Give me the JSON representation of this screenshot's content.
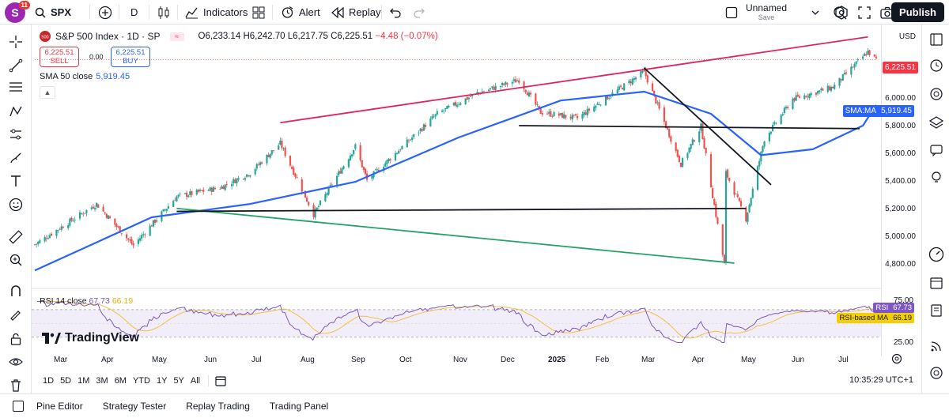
{
  "topbar": {
    "avatar_letter": "S",
    "notification_count": "11",
    "symbol": "SPX",
    "interval": "D",
    "indicators_label": "Indicators",
    "alert_label": "Alert",
    "replay_label": "Replay",
    "layout_name": "Unnamed",
    "layout_status": "Save",
    "publish_label": "Publish"
  },
  "legend": {
    "title": "S&P 500 Index · 1D · SP",
    "open": "O6,233.14",
    "high": "H6,242.70",
    "low": "L6,217.75",
    "close": "C6,225.51",
    "change": "−4.48 (−0.07%)",
    "sell_price": "6,225.51",
    "sell_label": "SELL",
    "spread": "0.00",
    "buy_price": "6,225.51",
    "buy_label": "BUY",
    "sma_label": "SMA 50 close",
    "sma_value": "5,919.45",
    "rsi_label": "RSI 14 close",
    "rsi_value": "67.73",
    "rsi_ma_value": "66.19",
    "brand": "TradingView"
  },
  "price_axis": {
    "currency": "USD",
    "ticks": [
      "6,000.00",
      "5,800.00",
      "5,600.00",
      "5,400.00",
      "5,200.00",
      "5,000.00",
      "4,800.00"
    ],
    "last_price_tag": "6,225.51",
    "sma_tag_label": "SMA:MA",
    "sma_tag_value": "5,919.45"
  },
  "rsi_axis": {
    "ticks": [
      "75.00",
      "25.00"
    ],
    "rsi_tag_label": "RSI",
    "rsi_tag_value": "67.73",
    "rsi_ma_tag_label": "RSI-based MA",
    "rsi_ma_tag_value": "66.19"
  },
  "time_axis": {
    "labels": [
      "Mar",
      "Apr",
      "May",
      "Jun",
      "Jul",
      "Aug",
      "Sep",
      "Oct",
      "Nov",
      "Dec",
      "2025",
      "Feb",
      "Mar",
      "Apr",
      "May",
      "Jun",
      "Jul"
    ]
  },
  "ranges": [
    "1D",
    "5D",
    "1M",
    "3M",
    "6M",
    "YTD",
    "1Y",
    "5Y",
    "All"
  ],
  "clock": "10:35:29 UTC+1",
  "bottom_tabs": [
    "Pine Editor",
    "Strategy Tester",
    "Replay Trading",
    "Trading Panel"
  ],
  "colors": {
    "sma_line": "#2962ff",
    "resistance_line": "#e0245e",
    "support_line": "#26a269",
    "horizontal_lines": "#131722",
    "up_candle": "#26a69a",
    "down_candle": "#ef5350",
    "rsi_line": "#7e57c2",
    "rsi_ma_line": "#f0c040"
  },
  "chart_data": {
    "type": "candlestick",
    "symbol": "SPX",
    "title": "S&P 500 Index · 1D · SP",
    "last_close": 6225.51,
    "ylim": [
      4700,
      6400
    ],
    "x_range": [
      "2024-02-20",
      "2025-07-08"
    ],
    "price_path": [
      [
        "2024-02-20",
        4975
      ],
      [
        "2024-03-05",
        5080
      ],
      [
        "2024-03-28",
        5250
      ],
      [
        "2024-04-19",
        4970
      ],
      [
        "2024-05-15",
        5300
      ],
      [
        "2024-06-10",
        5360
      ],
      [
        "2024-06-28",
        5460
      ],
      [
        "2024-07-16",
        5660
      ],
      [
        "2024-08-05",
        5180
      ],
      [
        "2024-08-30",
        5640
      ],
      [
        "2024-09-06",
        5410
      ],
      [
        "2024-10-18",
        5860
      ],
      [
        "2024-11-11",
        6000
      ],
      [
        "2024-12-06",
        6090
      ],
      [
        "2024-12-19",
        5870
      ],
      [
        "2025-01-10",
        5830
      ],
      [
        "2025-02-19",
        6145
      ],
      [
        "2025-03-13",
        5520
      ],
      [
        "2025-03-25",
        5775
      ],
      [
        "2025-04-08",
        4840
      ],
      [
        "2025-04-09",
        5460
      ],
      [
        "2025-04-21",
        5150
      ],
      [
        "2025-05-02",
        5690
      ],
      [
        "2025-05-19",
        5960
      ],
      [
        "2025-06-12",
        6040
      ],
      [
        "2025-07-03",
        6280
      ],
      [
        "2025-07-08",
        6225
      ]
    ],
    "sma_50_path": [
      [
        "2024-02-20",
        4800
      ],
      [
        "2024-04-30",
        5160
      ],
      [
        "2024-06-28",
        5250
      ],
      [
        "2024-08-30",
        5400
      ],
      [
        "2024-10-31",
        5700
      ],
      [
        "2024-12-31",
        5950
      ],
      [
        "2025-02-19",
        6010
      ],
      [
        "2025-03-31",
        5860
      ],
      [
        "2025-04-30",
        5580
      ],
      [
        "2025-05-31",
        5620
      ],
      [
        "2025-06-30",
        5780
      ],
      [
        "2025-07-08",
        5919.45
      ]
    ],
    "rsi_14": 67.73,
    "rsi_ma": 66.19,
    "rsi_levels": [
      75,
      25
    ]
  }
}
